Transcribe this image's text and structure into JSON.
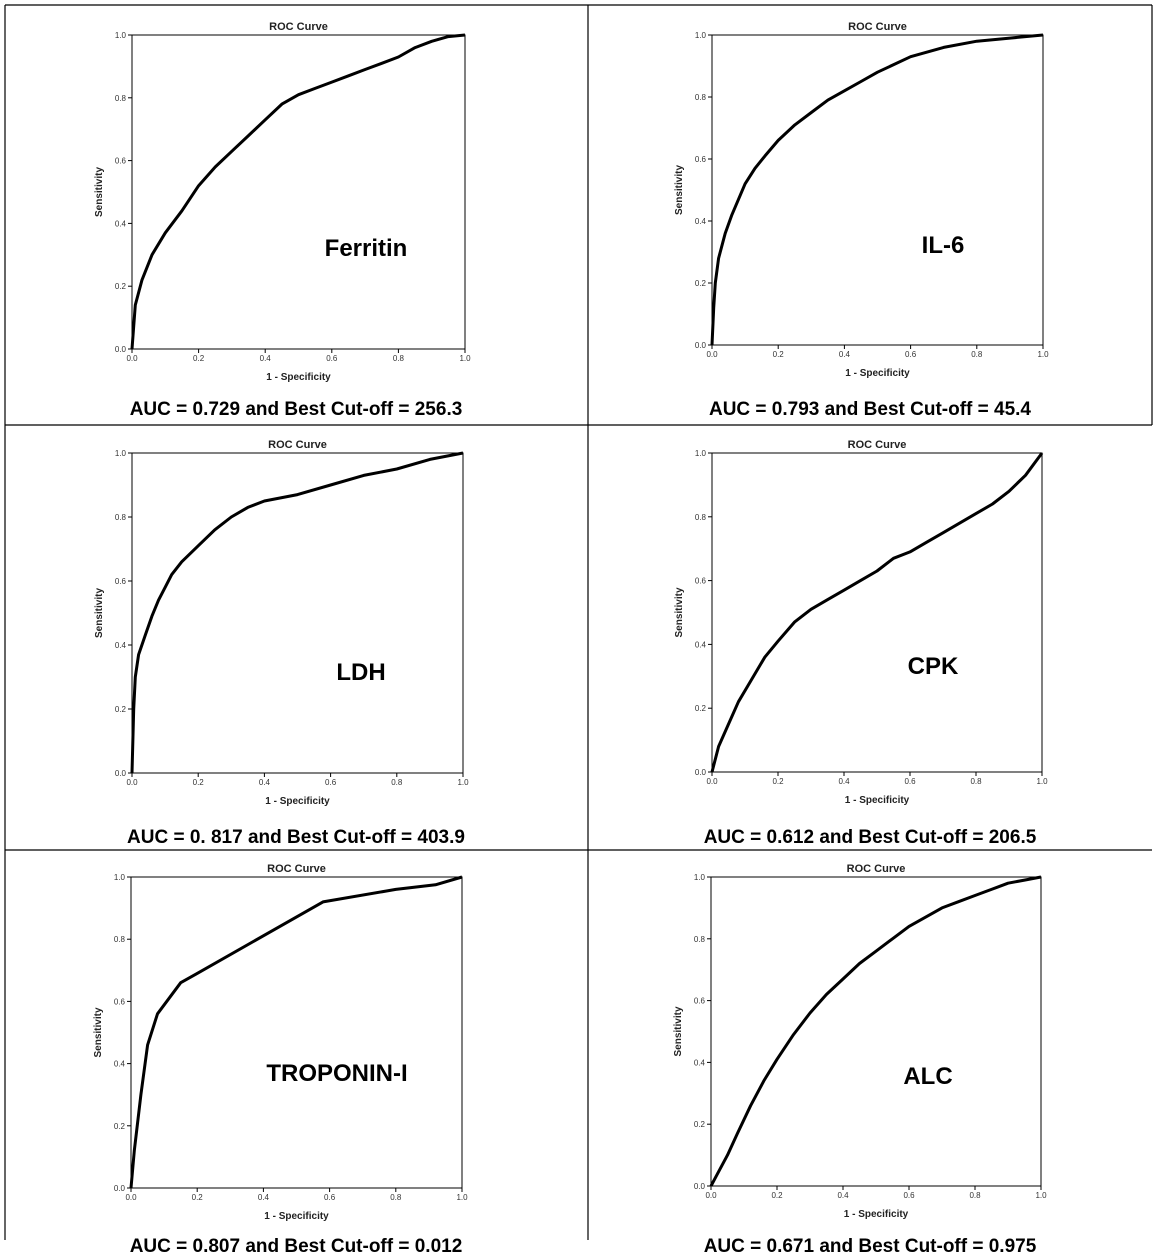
{
  "chart_data": [
    {
      "type": "line",
      "title": "ROC Curve",
      "xlabel": "1 - Specificity",
      "ylabel": "Sensitivity",
      "xlim": [
        0,
        1
      ],
      "ylim": [
        0,
        1
      ],
      "ticks": [
        "0.0",
        "0.2",
        "0.4",
        "0.6",
        "0.8",
        "1.0"
      ],
      "grid": false,
      "annotation": "Ferritin",
      "caption": "AUC = 0.729 and Best Cut-off = 256.3",
      "series": [
        {
          "x": [
            0,
            0.01,
            0.03,
            0.06,
            0.1,
            0.15,
            0.2,
            0.25,
            0.3,
            0.35,
            0.4,
            0.45,
            0.5,
            0.55,
            0.6,
            0.65,
            0.7,
            0.75,
            0.8,
            0.85,
            0.9,
            0.95,
            1.0
          ],
          "y": [
            0,
            0.14,
            0.22,
            0.3,
            0.37,
            0.44,
            0.52,
            0.58,
            0.63,
            0.68,
            0.73,
            0.78,
            0.81,
            0.83,
            0.85,
            0.87,
            0.89,
            0.91,
            0.93,
            0.96,
            0.98,
            0.995,
            1.0
          ]
        }
      ]
    },
    {
      "type": "line",
      "title": "ROC Curve",
      "xlabel": "1 - Specificity",
      "ylabel": "Sensitivity",
      "xlim": [
        0,
        1
      ],
      "ylim": [
        0,
        1
      ],
      "ticks": [
        "0.0",
        "0.2",
        "0.4",
        "0.6",
        "0.8",
        "1.0"
      ],
      "grid": false,
      "annotation": "IL-6",
      "caption": "AUC = 0.793 and Best Cut-off = 45.4",
      "series": [
        {
          "x": [
            0,
            0.005,
            0.01,
            0.02,
            0.04,
            0.06,
            0.08,
            0.1,
            0.13,
            0.16,
            0.2,
            0.25,
            0.3,
            0.35,
            0.4,
            0.45,
            0.5,
            0.6,
            0.7,
            0.8,
            0.9,
            1.0
          ],
          "y": [
            0,
            0.12,
            0.2,
            0.28,
            0.36,
            0.42,
            0.47,
            0.52,
            0.57,
            0.61,
            0.66,
            0.71,
            0.75,
            0.79,
            0.82,
            0.85,
            0.88,
            0.93,
            0.96,
            0.98,
            0.99,
            1.0
          ]
        }
      ]
    },
    {
      "type": "line",
      "title": "ROC Curve",
      "xlabel": "1 - Specificity",
      "ylabel": "Sensitivity",
      "xlim": [
        0,
        1
      ],
      "ylim": [
        0,
        1
      ],
      "ticks": [
        "0.0",
        "0.2",
        "0.4",
        "0.6",
        "0.8",
        "1.0"
      ],
      "grid": false,
      "annotation": "LDH",
      "caption": "AUC = 0. 817 and Best Cut-off = 403.9",
      "series": [
        {
          "x": [
            0,
            0.005,
            0.01,
            0.02,
            0.04,
            0.06,
            0.08,
            0.1,
            0.12,
            0.15,
            0.2,
            0.25,
            0.3,
            0.35,
            0.4,
            0.5,
            0.6,
            0.7,
            0.8,
            0.9,
            1.0
          ],
          "y": [
            0,
            0.2,
            0.3,
            0.37,
            0.43,
            0.49,
            0.54,
            0.58,
            0.62,
            0.66,
            0.71,
            0.76,
            0.8,
            0.83,
            0.85,
            0.87,
            0.9,
            0.93,
            0.95,
            0.98,
            1.0
          ]
        }
      ]
    },
    {
      "type": "line",
      "title": "ROC Curve",
      "xlabel": "1 - Specificity",
      "ylabel": "Sensitivity",
      "xlim": [
        0,
        1
      ],
      "ylim": [
        0,
        1
      ],
      "ticks": [
        "0.0",
        "0.2",
        "0.4",
        "0.6",
        "0.8",
        "1.0"
      ],
      "grid": false,
      "annotation": "CPK",
      "caption": "AUC = 0.612 and Best Cut-off = 206.5",
      "series": [
        {
          "x": [
            0,
            0.02,
            0.05,
            0.08,
            0.12,
            0.16,
            0.2,
            0.25,
            0.3,
            0.35,
            0.4,
            0.45,
            0.5,
            0.55,
            0.6,
            0.65,
            0.7,
            0.75,
            0.8,
            0.85,
            0.9,
            0.95,
            1.0
          ],
          "y": [
            0,
            0.08,
            0.15,
            0.22,
            0.29,
            0.36,
            0.41,
            0.47,
            0.51,
            0.54,
            0.57,
            0.6,
            0.63,
            0.67,
            0.69,
            0.72,
            0.75,
            0.78,
            0.81,
            0.84,
            0.88,
            0.93,
            1.0
          ]
        }
      ]
    },
    {
      "type": "line",
      "title": "ROC Curve",
      "xlabel": "1 - Specificity",
      "ylabel": "Sensitivity",
      "xlim": [
        0,
        1
      ],
      "ylim": [
        0,
        1
      ],
      "ticks": [
        "0.0",
        "0.2",
        "0.4",
        "0.6",
        "0.8",
        "1.0"
      ],
      "grid": false,
      "annotation": "TROPONIN-I",
      "caption": "AUC = 0.807 and Best Cut-off = 0.012",
      "series": [
        {
          "x": [
            0,
            0.01,
            0.03,
            0.05,
            0.08,
            0.15,
            0.2,
            0.58,
            0.8,
            0.92,
            1.0
          ],
          "y": [
            0,
            0.12,
            0.3,
            0.46,
            0.56,
            0.66,
            0.69,
            0.92,
            0.96,
            0.975,
            1.0
          ]
        }
      ]
    },
    {
      "type": "line",
      "title": "ROC Curve",
      "xlabel": "1 - Specificity",
      "ylabel": "Sensitivity",
      "xlim": [
        0,
        1
      ],
      "ylim": [
        0,
        1
      ],
      "ticks": [
        "0.0",
        "0.2",
        "0.4",
        "0.6",
        "0.8",
        "1.0"
      ],
      "grid": false,
      "annotation": "ALC",
      "caption": "AUC = 0.671 and Best Cut-off = 0.975",
      "series": [
        {
          "x": [
            0,
            0.02,
            0.05,
            0.08,
            0.12,
            0.16,
            0.2,
            0.25,
            0.3,
            0.35,
            0.4,
            0.45,
            0.5,
            0.55,
            0.6,
            0.65,
            0.7,
            0.75,
            0.8,
            0.85,
            0.9,
            0.95,
            1.0
          ],
          "y": [
            0,
            0.04,
            0.1,
            0.17,
            0.26,
            0.34,
            0.41,
            0.49,
            0.56,
            0.62,
            0.67,
            0.72,
            0.76,
            0.8,
            0.84,
            0.87,
            0.9,
            0.92,
            0.94,
            0.96,
            0.98,
            0.99,
            1.0
          ]
        }
      ]
    }
  ]
}
